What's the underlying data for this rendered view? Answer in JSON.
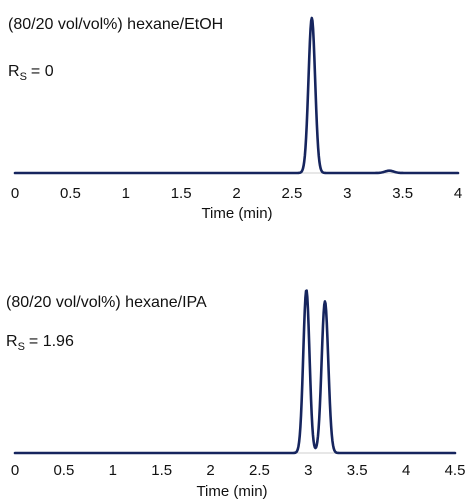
{
  "chart_data": [
    {
      "type": "line",
      "title": "(80/20 vol/vol%) hexane/EtOH",
      "annotation": {
        "prefix": "R",
        "subscript": "S",
        "value": "= 0"
      },
      "xlabel": "Time (min)",
      "xlim": [
        0,
        4
      ],
      "xticks": [
        "0",
        "0.5",
        "1",
        "1.5",
        "2",
        "2.5",
        "3",
        "3.5",
        "4"
      ],
      "grid": false,
      "series": [
        {
          "color": "#16255e",
          "peaks": [
            {
              "center": 2.68,
              "height": 1.0,
              "width": 0.03
            },
            {
              "center": 3.38,
              "height": 0.015,
              "width": 0.04
            }
          ]
        }
      ]
    },
    {
      "type": "line",
      "title": "(80/20 vol/vol%) hexane/IPA",
      "annotation": {
        "prefix": "R",
        "subscript": "S",
        "value": "= 1.96"
      },
      "xlabel": "Time (min)",
      "xlim": [
        0,
        4.5
      ],
      "xticks": [
        "0",
        "0.5",
        "1",
        "1.5",
        "2",
        "2.5",
        "3",
        "3.5",
        "4",
        "4.5"
      ],
      "grid": false,
      "series": [
        {
          "color": "#16255e",
          "peaks": [
            {
              "center": 2.98,
              "height": 1.0,
              "width": 0.032
            },
            {
              "center": 3.17,
              "height": 0.93,
              "width": 0.034
            }
          ]
        }
      ]
    }
  ]
}
